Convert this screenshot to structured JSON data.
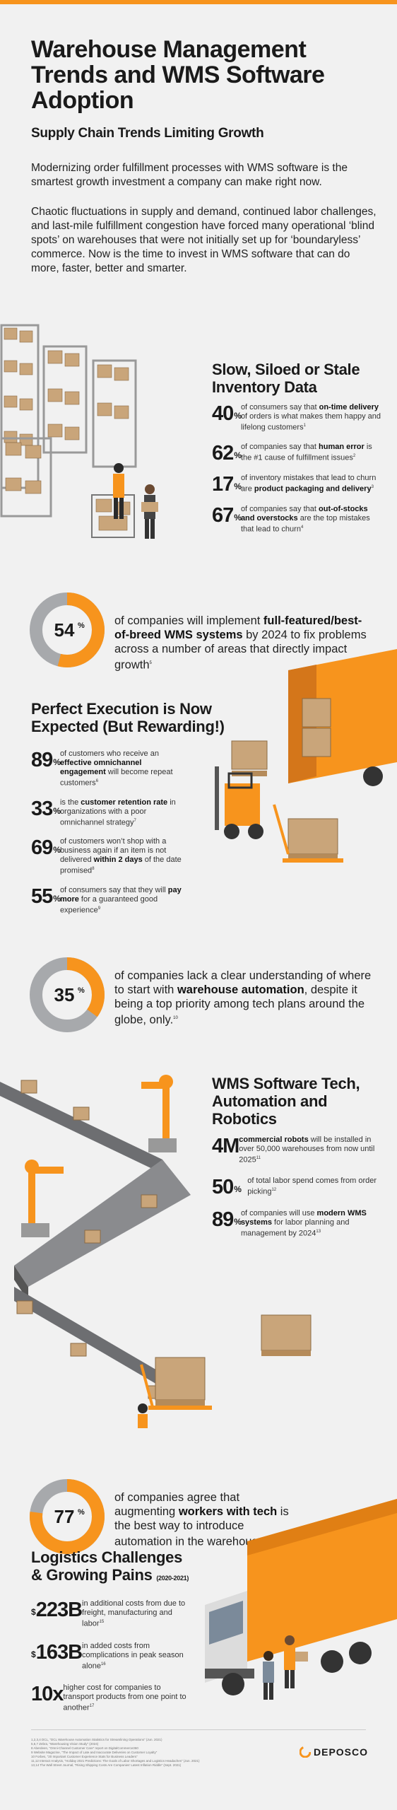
{
  "title": "Warehouse Management Trends and WMS Software Adoption",
  "subtitle": "Supply Chain Trends Limiting Growth",
  "intro": [
    "Modernizing order fulfillment processes with WMS software is the smartest growth investment a company can make right now.",
    "Chaotic fluctuations in supply and demand, continued labor challenges, and last-mile fulfillment congestion have forced many operational ‘blind spots’ on warehouses that were not initially set up for ‘boundaryless’ commerce. Now is the time to invest in WMS software that can do more, faster, better and smarter."
  ],
  "sections": {
    "inventory": {
      "heading": "Slow, Siloed or Stale Inventory Data",
      "stats": [
        {
          "num": "40",
          "unit": "%",
          "pre": "of consumers say that ",
          "bold": "on-time delivery",
          "post": " of orders is what makes them happy and lifelong customers",
          "ref": "1"
        },
        {
          "num": "62",
          "unit": "%",
          "pre": "of companies say that ",
          "bold": "human error",
          "post": " is the #1 cause of fulfillment issues",
          "ref": "2"
        },
        {
          "num": "17",
          "unit": "%",
          "pre": "of inventory mistakes that lead to churn are ",
          "bold": "product packaging and delivery",
          "post": "",
          "ref": "3"
        },
        {
          "num": "67",
          "unit": "%",
          "pre": "of companies say that ",
          "bold": "out-of-stocks and overstocks",
          "post": " are the top mistakes that lead to churn",
          "ref": "4"
        }
      ]
    },
    "donut1": {
      "value": 54,
      "label": "54",
      "unit": "%",
      "pre": "of companies will implement ",
      "bold": "full-featured/best-of-breed WMS systems",
      "post": " by 2024 to fix problems across a number of areas that directly impact growth",
      "ref": "5"
    },
    "execution": {
      "heading": "Perfect Execution is Now Expected (But Rewarding!)",
      "stats": [
        {
          "num": "89",
          "unit": "%",
          "pre": "of customers who receive an ",
          "bold": "effective omnichannel engagement",
          "post": " will become repeat customers",
          "ref": "6"
        },
        {
          "num": "33",
          "unit": "%",
          "pre": "is the ",
          "bold": "customer retention rate",
          "post": " in organizations with a poor omnichannel strategy",
          "ref": "7"
        },
        {
          "num": "69",
          "unit": "%",
          "pre": "of customers won’t shop with a business again if an item is not delivered ",
          "bold": "within 2 days",
          "post": " of the date promised",
          "ref": "8"
        },
        {
          "num": "55",
          "unit": "%",
          "pre": "of consumers say that they will ",
          "bold": "pay more",
          "post": " for a guaranteed good experience",
          "ref": "9"
        }
      ]
    },
    "donut2": {
      "value": 35,
      "label": "35",
      "unit": "%",
      "pre": "of companies lack a clear understanding of where to start with ",
      "bold": "warehouse automation",
      "post": ", despite it being a top priority among tech plans around the globe, only.",
      "ref": "10"
    },
    "wms": {
      "heading": "WMS Software Tech, Automation and Robotics",
      "stats": [
        {
          "num": "4M",
          "unit": "",
          "pre": "",
          "bold": "commercial robots",
          "post": " will be installed in over 50,000 warehouses from now until 2025",
          "ref": "11"
        },
        {
          "num": "50",
          "unit": "%",
          "pre": "of total labor spend comes from order picking",
          "bold": "",
          "post": "",
          "ref": "12"
        },
        {
          "num": "89",
          "unit": "%",
          "pre": "of companies will use ",
          "bold": "modern WMS systems",
          "post": " for labor planning and management by 2024",
          "ref": "13"
        }
      ]
    },
    "donut3": {
      "value": 77,
      "label": "77",
      "unit": "%",
      "pre": "of companies agree that augmenting ",
      "bold": "workers with tech",
      "post": " is the best way to introduce automation in the warehouse",
      "ref": "14"
    },
    "logistics": {
      "heading": "Logistics Challenges & Growing Pains",
      "heading_note": "(2020-2021)",
      "stats": [
        {
          "num": "223B",
          "cur": "$",
          "pre": "in additional costs from due to freight, manufacturing and labor",
          "ref": "15"
        },
        {
          "num": "163B",
          "cur": "$",
          "pre": "in added costs from complications in peak season alone",
          "ref": "16"
        },
        {
          "num": "10x",
          "cur": "",
          "pre": "higher cost for companies to transport products from one point to another",
          "ref": "17"
        }
      ]
    }
  },
  "footnotes": [
    "1,2,3,4 DCL, “DCL Warehouse Automation Statistics for Streamlining Operations” (Jun. 2021)",
    "5,6,7 Zebra, “Warehousing Vision Study” (2024)",
    "8 Aberdeen, “Omni-Channel Customer Care” report on DigitalCommerce360",
    "9 Website Magazine, “The Impact of Late and Inaccurate Deliveries on Customer Loyalty”",
    "10 Forbes, “20 Important Customer Experience Stats for Business Leaders”",
    "11,12 Interact Analysis, “Holiday 2021 Predictions: The Goals of Labor Shortages and Logistics Headaches” (Jun. 2021)",
    "13,14 The Wall Street Journal, “Rising Shipping Costs Are Companies’ Latest Inflation Riddle” (Sept. 2021)"
  ],
  "logo": "DEPOSCO",
  "colors": {
    "accent": "#f7941d",
    "donut_track": "#a7a9ac",
    "text": "#1a1a1a",
    "background": "#f1f1f1"
  },
  "illustrations": [
    "warehouse-shelves-illustration",
    "truck-forklift-illustration",
    "robotic-conveyor-illustration",
    "delivery-truck-illustration"
  ]
}
